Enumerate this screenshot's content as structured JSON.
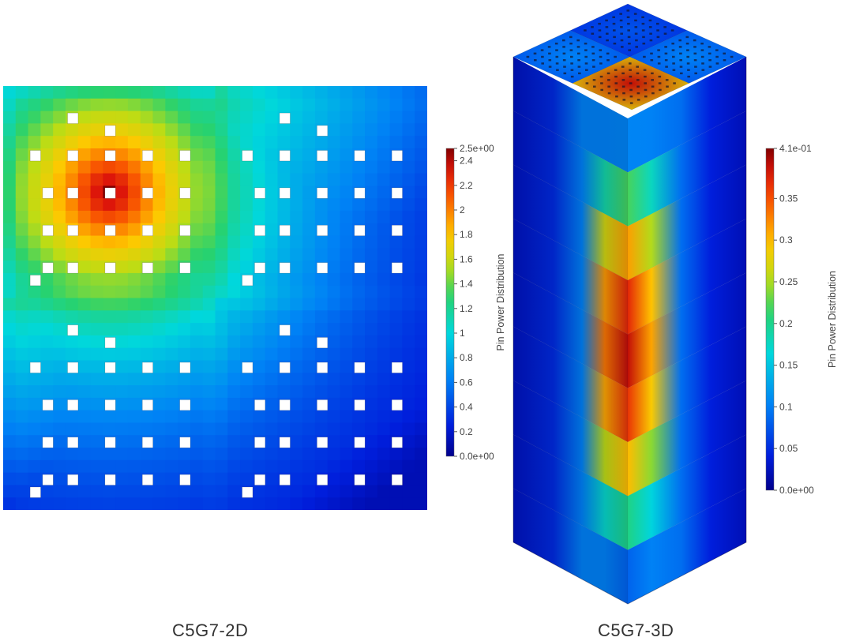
{
  "chart_data": [
    {
      "type": "heatmap",
      "title": "C5G7-2D",
      "colorbar": {
        "label": "Pin Power Distribution",
        "range": [
          0.0,
          2.5
        ],
        "ticks": [
          "2.5e+00",
          "2.4",
          "2.2",
          "2",
          "1.8",
          "1.6",
          "1.4",
          "1.2",
          "1",
          "0.8",
          "0.6",
          "0.4",
          "0.2",
          "0.0e+00"
        ],
        "tick_values": [
          2.5,
          2.4,
          2.2,
          2.0,
          1.8,
          1.6,
          1.4,
          1.2,
          1.0,
          0.8,
          0.6,
          0.4,
          0.2,
          0.0
        ]
      },
      "grid": {
        "cells_per_side": 34,
        "assemblies": 4
      },
      "peak_value": 2.5,
      "guide_tube_positions": [
        [
          2,
          5
        ],
        [
          3,
          8
        ],
        [
          5,
          2
        ],
        [
          5,
          5
        ],
        [
          5,
          8
        ],
        [
          5,
          11
        ],
        [
          5,
          14
        ],
        [
          8,
          3
        ],
        [
          8,
          5
        ],
        [
          8,
          8
        ],
        [
          8,
          11
        ],
        [
          8,
          14
        ],
        [
          11,
          3
        ],
        [
          11,
          5
        ],
        [
          11,
          8
        ],
        [
          11,
          11
        ],
        [
          11,
          14
        ],
        [
          14,
          3
        ],
        [
          14,
          5
        ],
        [
          14,
          8
        ],
        [
          14,
          11
        ],
        [
          14,
          14
        ],
        [
          15,
          2
        ]
      ]
    },
    {
      "type": "heatmap",
      "title": "C5G7-3D",
      "colorbar": {
        "label": "Pin Power Distribution",
        "range": [
          0.0,
          0.41
        ],
        "ticks": [
          "4.1e-01",
          "0.35",
          "0.3",
          "0.25",
          "0.2",
          "0.15",
          "0.1",
          "0.05",
          "0.0e+00"
        ],
        "tick_values": [
          0.41,
          0.35,
          0.3,
          0.25,
          0.2,
          0.15,
          0.1,
          0.05,
          0.0
        ]
      },
      "axial_layers": 9,
      "peak_value": 0.41
    }
  ],
  "captions": {
    "left": "C5G7-2D",
    "right": "C5G7-3D"
  }
}
